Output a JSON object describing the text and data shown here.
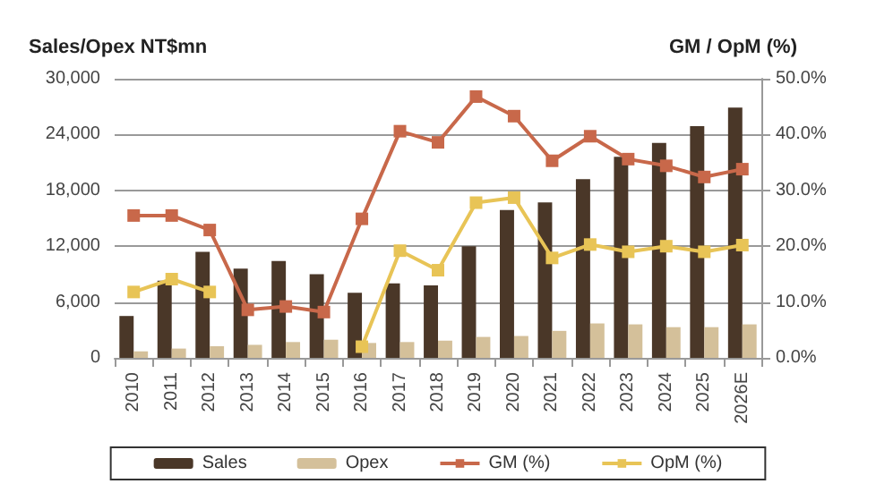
{
  "chart_data": {
    "type": "bar",
    "ylabel": "Sales/Opex NT$mn",
    "y2label": "GM / OpM (%)",
    "categories": [
      "2010",
      "2011",
      "2012",
      "2013",
      "2014",
      "2015",
      "2016",
      "2017",
      "2018",
      "2019",
      "2020",
      "2021",
      "2022",
      "2023",
      "2024",
      "2025",
      "2026E"
    ],
    "series": [
      {
        "name": "Sales",
        "color": "#4a3728",
        "values": [
          4500,
          8300,
          11400,
          9600,
          10400,
          9000,
          7000,
          8000,
          7800,
          12000,
          15900,
          16700,
          19200,
          21600,
          23100,
          24900,
          26900
        ]
      },
      {
        "name": "Opex",
        "color": "#d4c09a",
        "values": [
          700,
          1000,
          1250,
          1400,
          1700,
          1950,
          1600,
          1700,
          1850,
          2250,
          2350,
          2900,
          3700,
          3600,
          3300,
          3300,
          3600
        ]
      },
      {
        "name": "GM (%)",
        "type": "line",
        "axis": "y2",
        "color": "#c8684a",
        "values": [
          25.5,
          25.5,
          22.9,
          8.6,
          9.2,
          8.2,
          24.9,
          40.6,
          38.6,
          46.8,
          43.3,
          35.3,
          39.7,
          35.6,
          34.4,
          32.4,
          33.8
        ]
      },
      {
        "name": "OpM (%)",
        "type": "line",
        "axis": "y2",
        "color": "#e8c456",
        "values": [
          11.8,
          14.1,
          11.8,
          null,
          null,
          null,
          2.0,
          19.2,
          15.7,
          27.8,
          28.7,
          17.9,
          20.3,
          19.0,
          20.0,
          19.0,
          20.2
        ]
      }
    ],
    "ylim": [
      0,
      30000
    ],
    "yticks": [
      0,
      {
        "value": 6000,
        "label": "6,000"
      },
      {
        "value": 12000,
        "label": "12,000"
      },
      {
        "value": 18000,
        "label": "18,000"
      },
      {
        "value": 24000,
        "label": "24,000"
      },
      {
        "value": 30000,
        "label": "30,000"
      }
    ],
    "y2lim": [
      0,
      50
    ],
    "y2ticks": [
      {
        "value": 0,
        "label": "0.0%"
      },
      {
        "value": 10,
        "label": "10.0%"
      },
      {
        "value": 20,
        "label": "20.0%"
      },
      {
        "value": 30,
        "label": "30.0%"
      },
      {
        "value": 40,
        "label": "40.0%"
      },
      {
        "value": 50,
        "label": "50.0%"
      }
    ],
    "grid": "y",
    "legend": "bottom",
    "marker": "square",
    "line_style": "solid"
  }
}
